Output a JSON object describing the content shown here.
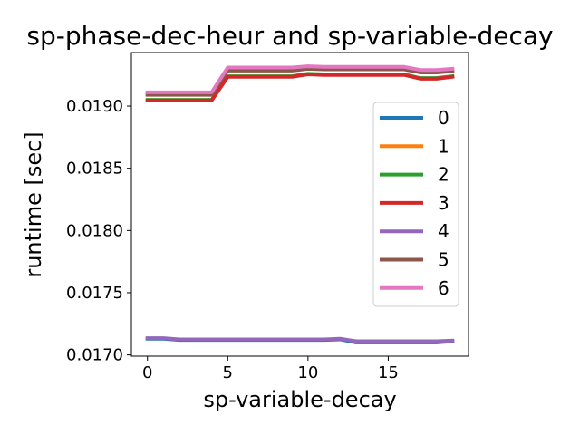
{
  "chart_data": {
    "type": "line",
    "title": "sp-phase-dec-heur and sp-variable-decay",
    "xlabel": "sp-variable-decay",
    "ylabel": "runtime [sec]",
    "xlim": [
      -1,
      20
    ],
    "ylim": [
      0.01699,
      0.01943
    ],
    "xticks": [
      0,
      5,
      10,
      15
    ],
    "xtick_labels": [
      "0",
      "5",
      "10",
      "15"
    ],
    "yticks": [
      0.017,
      0.0175,
      0.018,
      0.0185,
      0.019
    ],
    "ytick_labels": [
      "0.0170",
      "0.0175",
      "0.0180",
      "0.0185",
      "0.0190"
    ],
    "grid": false,
    "legend_position": "right",
    "x": [
      0,
      1,
      2,
      3,
      4,
      5,
      6,
      7,
      8,
      9,
      10,
      11,
      12,
      13,
      14,
      15,
      16,
      17,
      18,
      19
    ],
    "series": [
      {
        "name": "0",
        "color": "#1f77b4",
        "values": [
          0.01713,
          0.01713,
          0.01712,
          0.01712,
          0.01712,
          0.01712,
          0.01712,
          0.01712,
          0.01712,
          0.01712,
          0.01712,
          0.01712,
          0.017125,
          0.0171,
          0.0171,
          0.0171,
          0.0171,
          0.0171,
          0.0171,
          0.01711
        ]
      },
      {
        "name": "1",
        "color": "#ff7f0e",
        "values": [
          0.0191,
          0.0191,
          0.0191,
          0.0191,
          0.0191,
          0.0193,
          0.0193,
          0.0193,
          0.0193,
          0.0193,
          0.01931,
          0.019305,
          0.019305,
          0.019305,
          0.019305,
          0.019305,
          0.019305,
          0.01928,
          0.01928,
          0.01929
        ]
      },
      {
        "name": "2",
        "color": "#2ca02c",
        "values": [
          0.01905,
          0.01905,
          0.01905,
          0.01905,
          0.01905,
          0.01924,
          0.01924,
          0.01924,
          0.01924,
          0.01924,
          0.01926,
          0.019255,
          0.019255,
          0.019255,
          0.019255,
          0.019255,
          0.019255,
          0.019225,
          0.019225,
          0.01924
        ]
      },
      {
        "name": "3",
        "color": "#d62728",
        "values": [
          0.019045,
          0.019045,
          0.019045,
          0.019045,
          0.019045,
          0.019235,
          0.019235,
          0.019235,
          0.019235,
          0.019235,
          0.019255,
          0.01925,
          0.01925,
          0.01925,
          0.01925,
          0.01925,
          0.01925,
          0.01922,
          0.01922,
          0.019235
        ]
      },
      {
        "name": "4",
        "color": "#9467bd",
        "values": [
          0.017135,
          0.017135,
          0.017125,
          0.017125,
          0.017125,
          0.017125,
          0.017125,
          0.017125,
          0.017125,
          0.017125,
          0.017125,
          0.017125,
          0.01713,
          0.01711,
          0.01711,
          0.01711,
          0.01711,
          0.01711,
          0.01711,
          0.017115
        ]
      },
      {
        "name": "5",
        "color": "#8c564b",
        "values": [
          0.01909,
          0.01909,
          0.01909,
          0.01909,
          0.01909,
          0.019285,
          0.019285,
          0.019285,
          0.019285,
          0.019285,
          0.0193,
          0.019295,
          0.019295,
          0.019295,
          0.019295,
          0.019295,
          0.019295,
          0.01927,
          0.01927,
          0.01928
        ]
      },
      {
        "name": "6",
        "color": "#e377c2",
        "values": [
          0.01911,
          0.01911,
          0.01911,
          0.01911,
          0.01911,
          0.01931,
          0.01931,
          0.01931,
          0.01931,
          0.01931,
          0.01932,
          0.019315,
          0.019315,
          0.019315,
          0.019315,
          0.019315,
          0.019315,
          0.01929,
          0.01929,
          0.0193
        ]
      }
    ]
  }
}
